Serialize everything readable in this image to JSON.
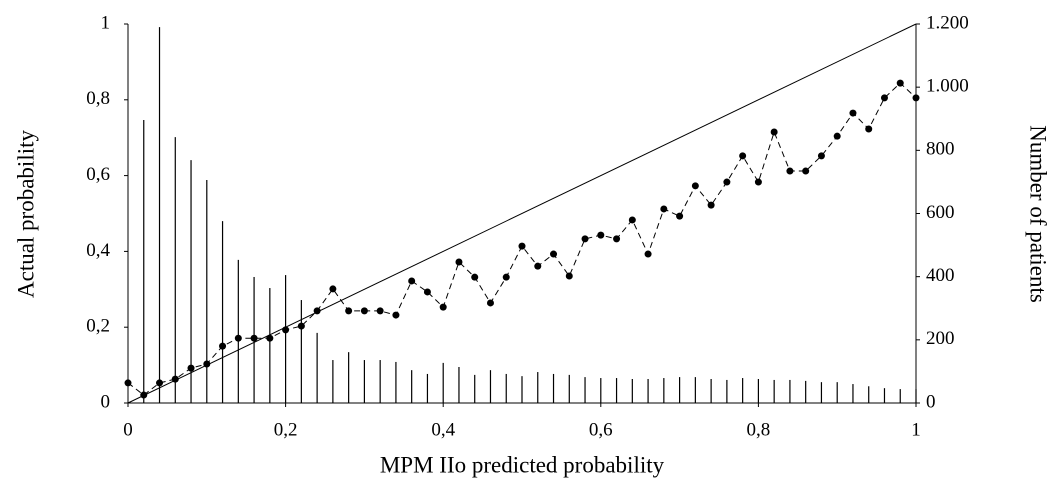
{
  "chart_data": {
    "type": "line",
    "xlabel": "MPM IIo predicted probability",
    "ylabel": "Actual probability",
    "y2label": "Number of patients",
    "x": [
      0,
      0.02,
      0.04,
      0.06,
      0.08,
      0.1,
      0.12,
      0.14,
      0.16,
      0.18,
      0.2,
      0.22,
      0.24,
      0.26,
      0.28,
      0.3,
      0.32,
      0.34,
      0.36,
      0.38,
      0.4,
      0.42,
      0.44,
      0.46,
      0.48,
      0.5,
      0.52,
      0.54,
      0.56,
      0.58,
      0.6,
      0.62,
      0.64,
      0.66,
      0.68,
      0.7,
      0.72,
      0.74,
      0.76,
      0.78,
      0.8,
      0.82,
      0.84,
      0.86,
      0.88,
      0.9,
      0.92,
      0.94,
      0.96,
      0.98,
      1
    ],
    "series": [
      {
        "type": "line",
        "color": "#000000",
        "values": [
          0.053,
          0.021,
          0.053,
          0.063,
          0.092,
          0.103,
          0.15,
          0.171,
          0.171,
          0.171,
          0.193,
          0.203,
          0.243,
          0.301,
          0.243,
          0.243,
          0.243,
          0.232,
          0.322,
          0.293,
          0.253,
          0.372,
          0.332,
          0.264,
          0.332,
          0.414,
          0.361,
          0.393,
          0.335,
          0.433,
          0.443,
          0.433,
          0.483,
          0.393,
          0.512,
          0.493,
          0.573,
          0.522,
          0.583,
          0.652,
          0.583,
          0.715,
          0.612,
          0.612,
          0.652,
          0.704,
          0.765,
          0.723,
          0.805,
          0.844,
          0.805
        ]
      },
      {
        "type": "bar",
        "axis": "y2",
        "color": "#000000",
        "values": [
          null,
          896,
          1190,
          842,
          769,
          706,
          576,
          453,
          399,
          364,
          405,
          326,
          222,
          136,
          161,
          136,
          136,
          130,
          104,
          92,
          127,
          114,
          89,
          104,
          92,
          85,
          98,
          92,
          89,
          82,
          79,
          79,
          76,
          76,
          79,
          82,
          82,
          76,
          73,
          79,
          76,
          73,
          73,
          70,
          66,
          66,
          60,
          53,
          47,
          44,
          44
        ]
      }
    ],
    "xlim": [
      0,
      1
    ],
    "xticks": [
      0,
      {
        "value": 0.2,
        "label": "0,2"
      },
      {
        "value": 0.4,
        "label": "0,4"
      },
      {
        "value": 0.6,
        "label": "0,6"
      },
      {
        "value": 0.8,
        "label": "0,8"
      },
      1
    ],
    "ylim": [
      0,
      1
    ],
    "yticks": [
      0,
      {
        "value": 0.2,
        "label": "0,2"
      },
      {
        "value": 0.4,
        "label": "0,4"
      },
      {
        "value": 0.6,
        "label": "0,6"
      },
      {
        "value": 0.8,
        "label": "0,8"
      },
      1
    ],
    "y2lim": [
      0,
      1200
    ],
    "y2ticks": [
      0,
      200,
      400,
      600,
      800,
      {
        "value": 1000,
        "label": "1.000"
      },
      {
        "value": 1200,
        "label": "1.200"
      }
    ],
    "grid": false
  }
}
